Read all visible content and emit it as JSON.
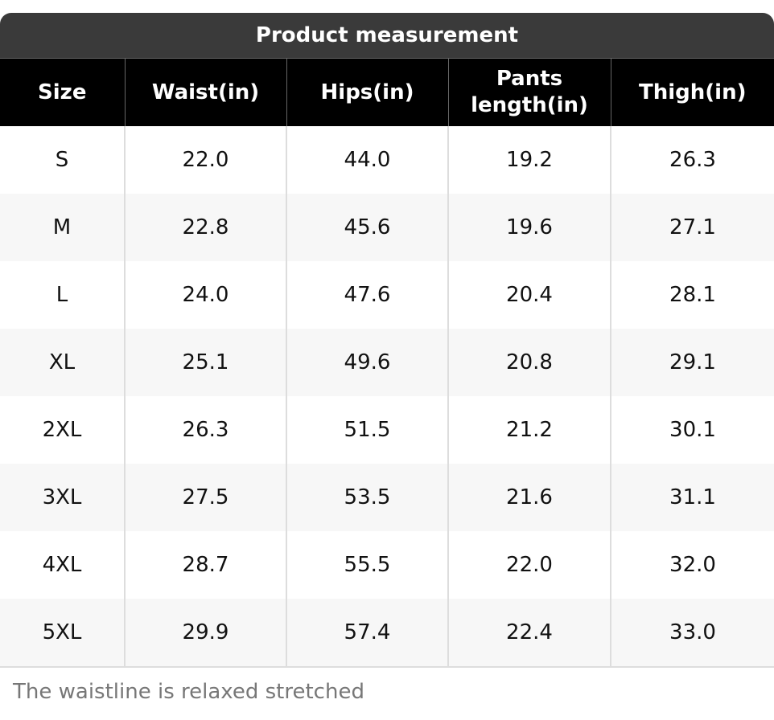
{
  "table": {
    "title": "Product measurement",
    "columns": [
      "Size",
      "Waist(in)",
      "Hips(in)",
      "Pants length(in)",
      "Thigh(in)"
    ],
    "rows": [
      [
        "S",
        "22.0",
        "44.0",
        "19.2",
        "26.3"
      ],
      [
        "M",
        "22.8",
        "45.6",
        "19.6",
        "27.1"
      ],
      [
        "L",
        "24.0",
        "47.6",
        "20.4",
        "28.1"
      ],
      [
        "XL",
        "25.1",
        "49.6",
        "20.8",
        "29.1"
      ],
      [
        "2XL",
        "26.3",
        "51.5",
        "21.2",
        "30.1"
      ],
      [
        "3XL",
        "27.5",
        "53.5",
        "21.6",
        "31.1"
      ],
      [
        "4XL",
        "28.7",
        "55.5",
        "22.0",
        "32.0"
      ],
      [
        "5XL",
        "29.9",
        "57.4",
        "22.4",
        "33.0"
      ]
    ]
  },
  "footnote": "The waistline is relaxed stretched"
}
